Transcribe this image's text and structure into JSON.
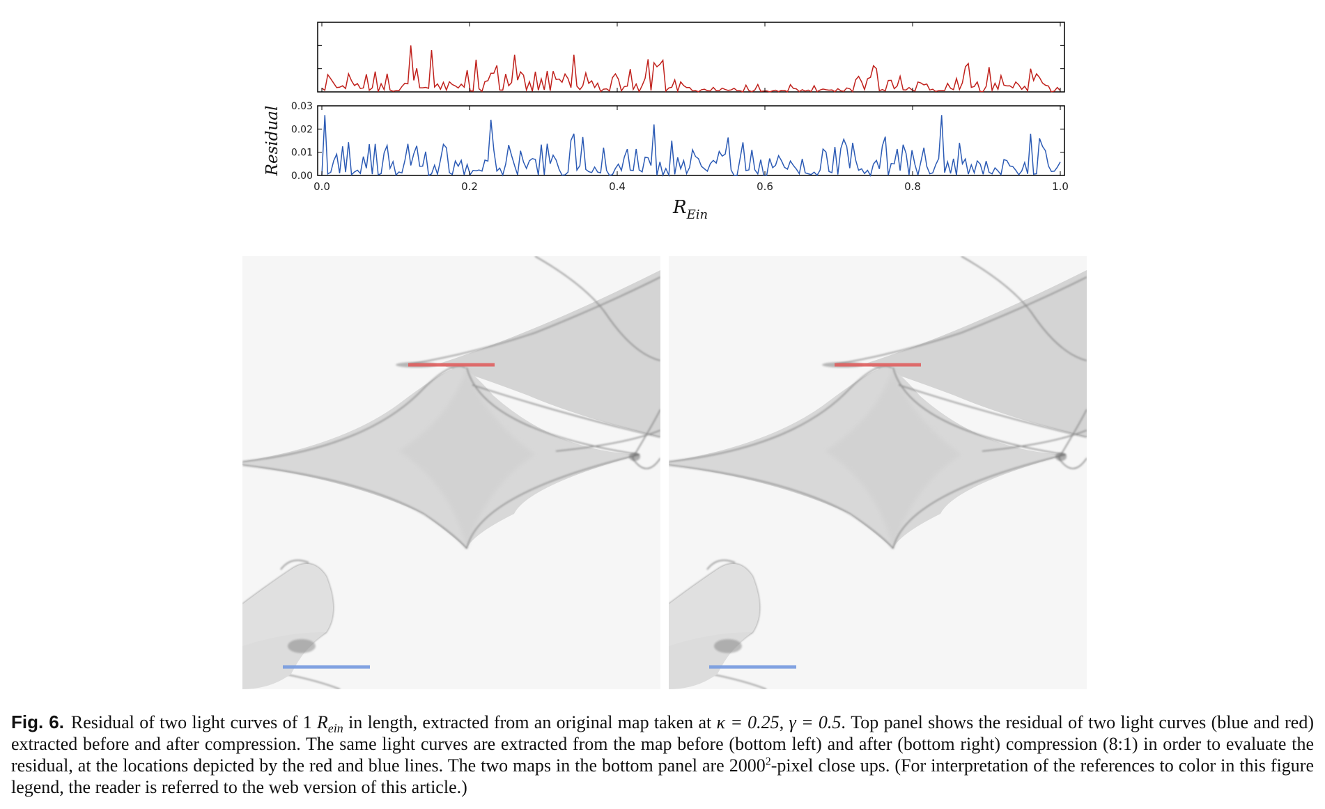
{
  "figure": {
    "label": "Fig. 6.",
    "caption": {
      "part1": "Residual of two light curves of 1 ",
      "rein_main": "R",
      "rein_sub": "ein",
      "part2": " in length, extracted from an original map taken at ",
      "kappa": "κ = 0.25",
      "comma": ", ",
      "gamma": "γ = 0.5",
      "part3": ". Top panel shows the residual of two light curves (blue and red) extracted before and after compression. The same light curves are extracted from the map before (bottom left) and after (bottom right) compression (8:1) in order to evaluate the residual, at the locations depicted by the red and blue lines. The two maps in the bottom panel are 2000",
      "sup": "2",
      "part4": "-pixel close ups. (For interpretation of the references to color in this figure legend, the reader is referred to the web version of this article.)"
    }
  },
  "chart_data": {
    "type": "line",
    "ylabel": "Residual",
    "xlabel": "R",
    "xlabel_sub": "Ein",
    "xlim": [
      0.0,
      1.0
    ],
    "ylim": [
      0.0,
      0.03
    ],
    "xticks": [
      "0.0",
      "0.2",
      "0.4",
      "0.6",
      "0.8",
      "1.0"
    ],
    "yticks": [
      "0.00",
      "0.01",
      "0.02",
      "0.03"
    ],
    "n_points": 250,
    "series": [
      {
        "color": "#c0211c",
        "panel": "top",
        "y_approx_range": [
          0.0,
          0.02
        ],
        "peaks": [
          [
            0.12,
            0.02
          ],
          [
            0.15,
            0.018
          ],
          [
            0.26,
            0.016
          ],
          [
            0.34,
            0.016
          ],
          [
            0.44,
            0.014
          ],
          [
            0.75,
            0.01
          ],
          [
            0.96,
            0.01
          ]
        ]
      },
      {
        "color": "#2c5bb5",
        "panel": "bottom",
        "y_approx_range": [
          0.0,
          0.026
        ],
        "peaks": [
          [
            0.005,
            0.026
          ],
          [
            0.23,
            0.024
          ],
          [
            0.34,
            0.018
          ],
          [
            0.45,
            0.022
          ],
          [
            0.84,
            0.026
          ],
          [
            0.96,
            0.018
          ]
        ]
      }
    ]
  },
  "maps": {
    "left": {
      "red_line_color": "#e06060",
      "blue_line_color": "#7b9ee0"
    },
    "right": {
      "red_line_color": "#e06060",
      "blue_line_color": "#7b9ee0"
    }
  }
}
